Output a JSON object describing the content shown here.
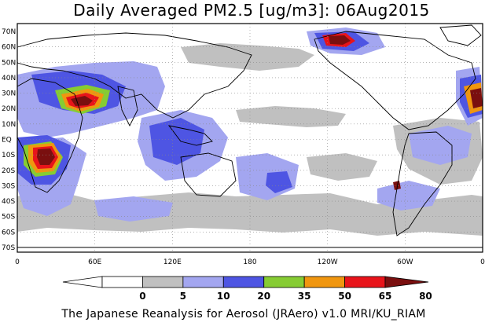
{
  "title": "Daily Averaged PM2.5 [ug/m3]: 06Aug2015",
  "footer": "The Japanese Reanalysis for Aerosol (JRAero) v1.0 MRI/KU_RIAM",
  "map": {
    "lat_labels": [
      "70N",
      "60N",
      "50N",
      "40N",
      "30N",
      "20N",
      "10N",
      "EQ",
      "10S",
      "20S",
      "30S",
      "40S",
      "50S",
      "60S",
      "70S"
    ],
    "lon_labels": [
      "0",
      "60E",
      "120E",
      "180",
      "120W",
      "60W",
      "0"
    ]
  },
  "legend": {
    "levels": [
      "0",
      "5",
      "10",
      "20",
      "35",
      "50",
      "65",
      "80"
    ],
    "colors": {
      "lt5": "#ffffff",
      "5_10": "#c0c0c0",
      "10_20": "#a3a6f0",
      "20_35": "#4e55e3",
      "35_50": "#86cc33",
      "50_65": "#f0960f",
      "65_80": "#e8141a",
      "gt80": "#7a0f0f"
    }
  }
}
